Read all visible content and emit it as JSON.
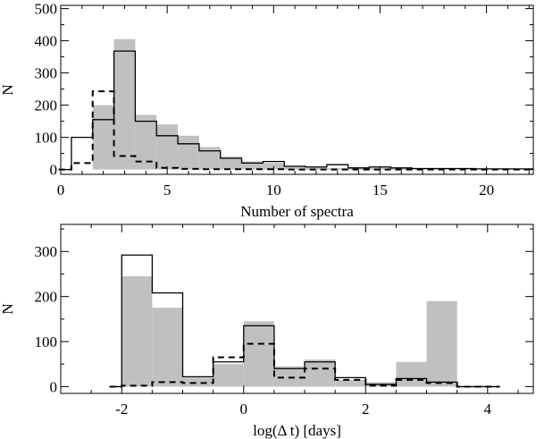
{
  "chart_data": [
    {
      "type": "bar",
      "title": "",
      "xlabel": "Number of spectra",
      "ylabel": "N",
      "xlim": [
        0,
        22.2
      ],
      "ylim": [
        -15,
        510
      ],
      "xticks": [
        0,
        5,
        10,
        15,
        20
      ],
      "yticks": [
        0,
        100,
        200,
        300,
        400,
        500
      ],
      "bin_edges": [
        0.5,
        1.5,
        2.5,
        3.5,
        4.5,
        5.5,
        6.5,
        7.5,
        8.5,
        9.5,
        10.5,
        11.5,
        12.5,
        13.5,
        14.5,
        15.5,
        16.5,
        17.5,
        18.5,
        19.5,
        20.5,
        21.5,
        22.2
      ],
      "series": [
        {
          "name": "gray filled",
          "style": "filled",
          "color": "#c0c0c0",
          "values": [
            0,
            200,
            405,
            170,
            140,
            105,
            70,
            40,
            25,
            20,
            12,
            8,
            5,
            8,
            6,
            5,
            4,
            3,
            3,
            3,
            3,
            3
          ]
        },
        {
          "name": "solid",
          "style": "solid",
          "color": "#000000",
          "values": [
            100,
            155,
            368,
            150,
            105,
            80,
            58,
            35,
            20,
            25,
            10,
            8,
            15,
            5,
            8,
            5,
            3,
            3,
            3,
            2,
            2,
            2
          ]
        },
        {
          "name": "dashed",
          "style": "dashed",
          "color": "#000000",
          "values": [
            20,
            243,
            42,
            25,
            5,
            2,
            1,
            1,
            1,
            1,
            0,
            0,
            0,
            0,
            0,
            0,
            0,
            0,
            0,
            0,
            0,
            0
          ]
        }
      ],
      "lead_in": {
        "x": [
          -0.1,
          0.5
        ],
        "y": 0
      }
    },
    {
      "type": "bar",
      "title": "",
      "xlabel": "log(Δ t) [days]",
      "ylabel": "N",
      "xlim": [
        -3,
        4.75
      ],
      "ylim": [
        -15,
        360
      ],
      "xticks": [
        -2,
        0,
        2,
        4
      ],
      "yticks": [
        0,
        100,
        200,
        300
      ],
      "bin_edges": [
        -2.0,
        -1.5,
        -1.0,
        -0.5,
        0.0,
        0.5,
        1.0,
        1.5,
        2.0,
        2.5,
        3.0,
        3.5
      ],
      "series": [
        {
          "name": "gray filled",
          "style": "filled",
          "color": "#c0c0c0",
          "values": [
            245,
            175,
            20,
            50,
            145,
            45,
            60,
            15,
            10,
            55,
            190
          ]
        },
        {
          "name": "solid",
          "style": "solid",
          "color": "#000000",
          "values": [
            292,
            208,
            22,
            55,
            135,
            40,
            55,
            20,
            5,
            18,
            10
          ]
        },
        {
          "name": "dashed",
          "style": "dashed",
          "color": "#000000",
          "values": [
            2,
            10,
            8,
            65,
            95,
            20,
            40,
            15,
            2,
            15,
            8
          ]
        }
      ],
      "lead_in": {
        "x": [
          -2.2,
          -2.0
        ],
        "y": 0
      },
      "lead_out": {
        "x": [
          3.5,
          4.2
        ],
        "y": 0
      }
    }
  ]
}
